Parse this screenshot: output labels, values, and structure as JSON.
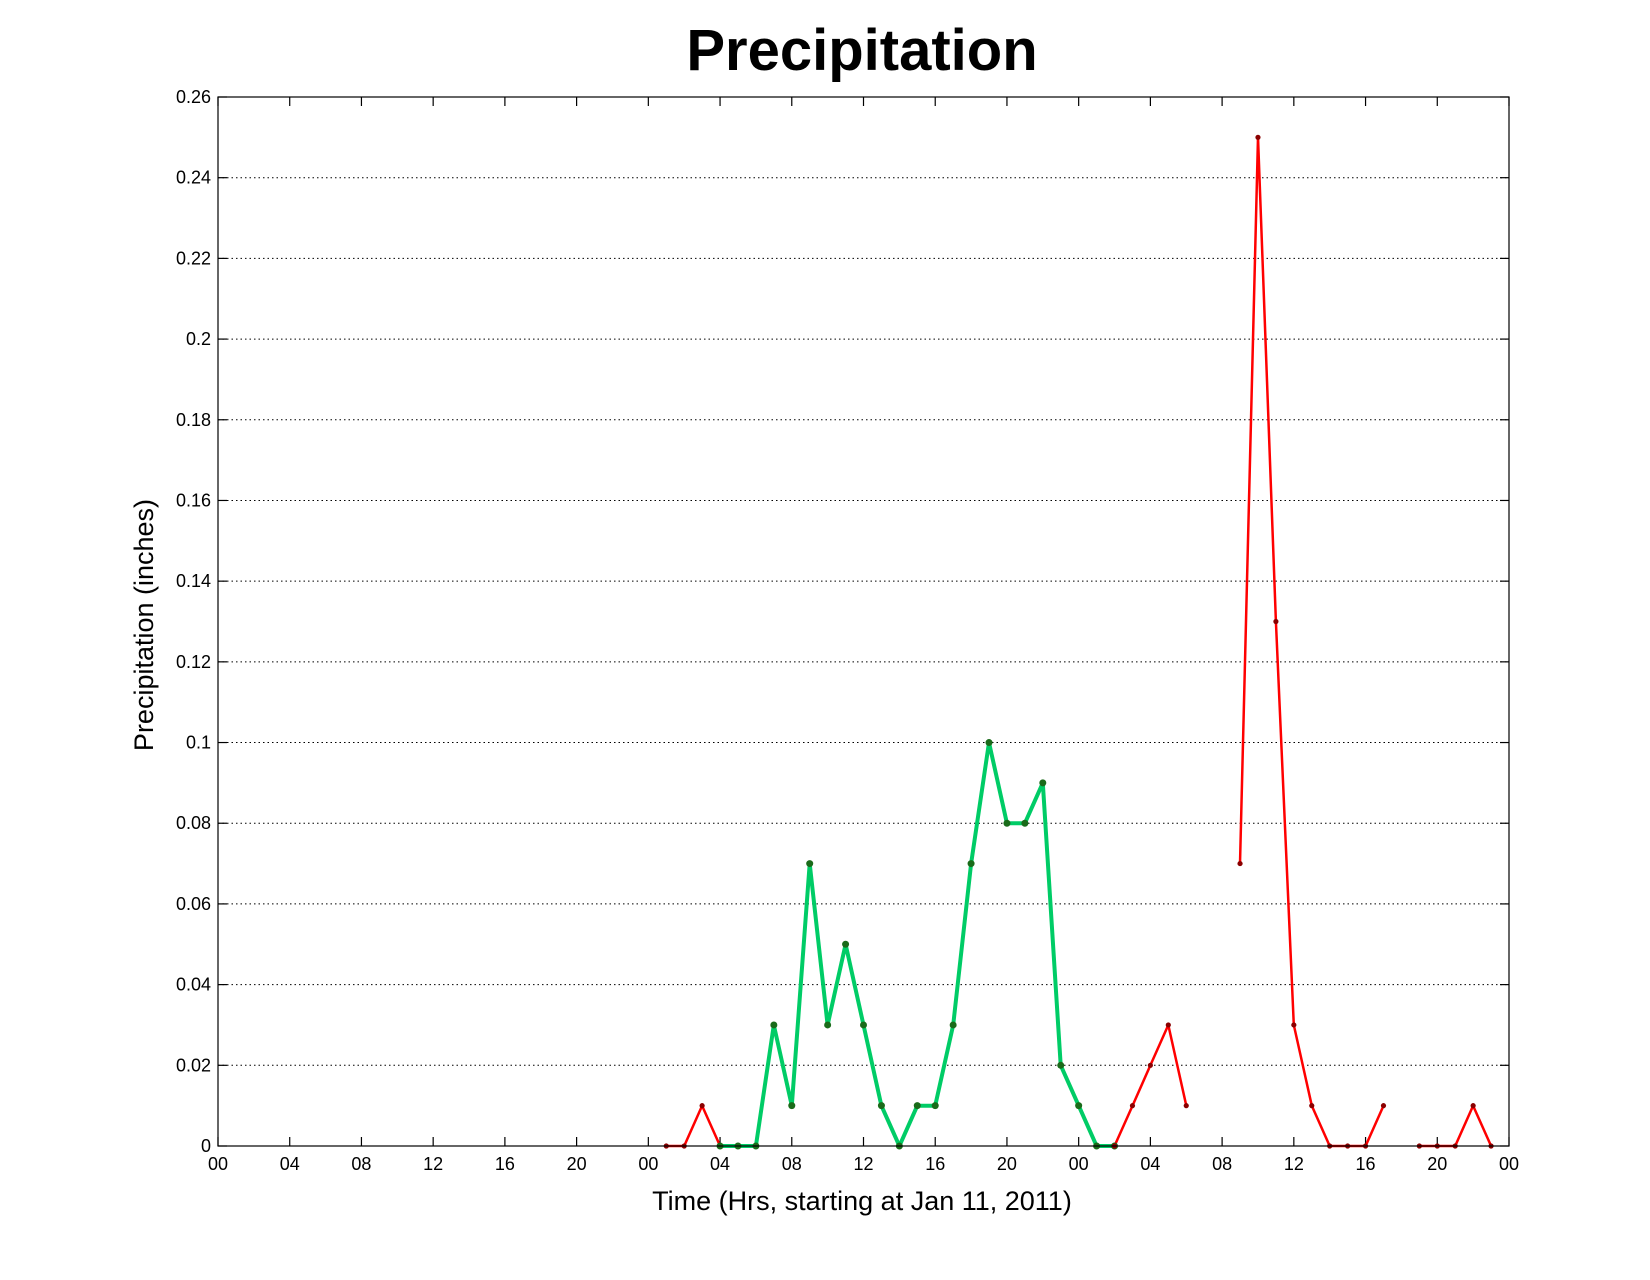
{
  "chart_data": {
    "type": "line",
    "title": "Precipitation",
    "xlabel": "Time (Hrs, starting at Jan 11, 2011)",
    "ylabel": "Precipitation (inches)",
    "x_unit": "hours",
    "xlim": [
      0,
      72
    ],
    "ylim": [
      0,
      0.26
    ],
    "x_ticks": [
      0,
      4,
      8,
      12,
      16,
      20,
      24,
      28,
      32,
      36,
      40,
      44,
      48,
      52,
      56,
      60,
      64,
      68,
      72
    ],
    "x_tick_labels": [
      "00",
      "04",
      "08",
      "12",
      "16",
      "20",
      "00",
      "04",
      "08",
      "12",
      "16",
      "20",
      "00",
      "04",
      "08",
      "12",
      "16",
      "20",
      "00"
    ],
    "y_ticks": [
      0,
      0.02,
      0.04,
      0.06,
      0.08,
      0.1,
      0.12,
      0.14,
      0.16,
      0.18,
      0.2,
      0.22,
      0.24,
      0.26
    ],
    "y_tick_labels": [
      "0",
      "0.02",
      "0.04",
      "0.06",
      "0.08",
      "0.1",
      "0.12",
      "0.14",
      "0.16",
      "0.18",
      "0.2",
      "0.22",
      "0.24",
      "0.26"
    ],
    "grid": "horizontal dotted",
    "series": [
      {
        "color": "#ff0000",
        "points": [
          [
            25,
            0
          ],
          [
            26,
            0
          ],
          [
            27,
            0.01
          ],
          [
            28,
            0
          ]
        ]
      },
      {
        "color": "#00cc66",
        "points": [
          [
            28,
            0
          ],
          [
            29,
            0
          ],
          [
            30,
            0
          ],
          [
            31,
            0.03
          ],
          [
            32,
            0.01
          ],
          [
            33,
            0.07
          ],
          [
            34,
            0.03
          ],
          [
            35,
            0.05
          ],
          [
            36,
            0.03
          ],
          [
            37,
            0.01
          ],
          [
            38,
            0
          ],
          [
            39,
            0.01
          ],
          [
            40,
            0.01
          ],
          [
            41,
            0.03
          ],
          [
            42,
            0.07
          ],
          [
            43,
            0.1
          ],
          [
            44,
            0.08
          ],
          [
            45,
            0.08
          ],
          [
            46,
            0.09
          ],
          [
            47,
            0.02
          ],
          [
            48,
            0.01
          ],
          [
            49,
            0
          ],
          [
            50,
            0
          ]
        ]
      },
      {
        "color": "#ff0000",
        "points": [
          [
            50,
            0
          ],
          [
            51,
            0.01
          ],
          [
            52,
            0.02
          ],
          [
            53,
            0.03
          ],
          [
            54,
            0.01
          ]
        ]
      },
      {
        "color": "#ff0000",
        "points": [
          [
            57,
            0.07
          ],
          [
            58,
            0.25
          ],
          [
            59,
            0.13
          ],
          [
            60,
            0.03
          ],
          [
            61,
            0.01
          ],
          [
            62,
            0
          ],
          [
            63,
            0
          ],
          [
            64,
            0
          ],
          [
            65,
            0.01
          ]
        ]
      },
      {
        "color": "#ff0000",
        "points": [
          [
            67,
            0
          ],
          [
            68,
            0
          ],
          [
            69,
            0
          ],
          [
            70,
            0.01
          ],
          [
            71,
            0
          ]
        ]
      }
    ]
  }
}
